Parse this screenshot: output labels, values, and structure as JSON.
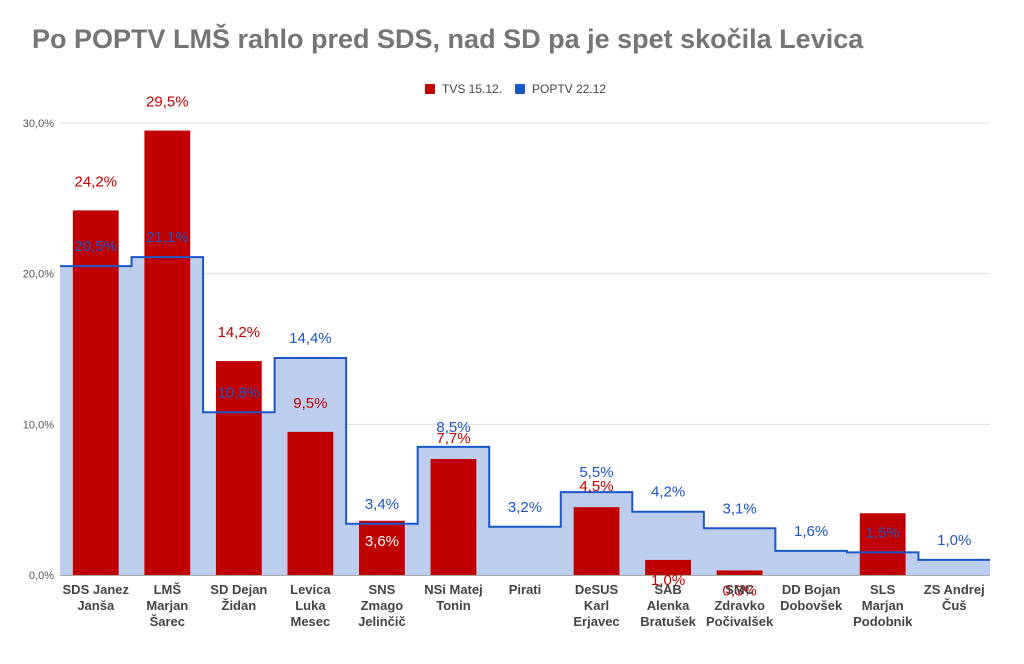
{
  "chart_data": {
    "type": "bar",
    "title": "Po POPTV LMŠ rahlo pred SDS, nad SD pa je spet skočila Levica",
    "categories": [
      [
        "SDS Janez",
        "Janša"
      ],
      [
        "LMŠ",
        "Marjan",
        "Šarec"
      ],
      [
        "SD Dejan",
        "Židan"
      ],
      [
        "Levica",
        "Luka",
        "Mesec"
      ],
      [
        "SNS",
        "Zmago",
        "Jelinčič"
      ],
      [
        "NSi Matej",
        "Tonin"
      ],
      [
        "Pirati"
      ],
      [
        "DeSUS",
        "Karl",
        "Erjavec"
      ],
      [
        "SAB",
        "Alenka",
        "Bratušek"
      ],
      [
        "SMC",
        "Zdravko",
        "Počivalšek"
      ],
      [
        "DD Bojan",
        "Dobovšek"
      ],
      [
        "SLS",
        "Marjan",
        "Podobnik"
      ],
      [
        "ZS Andrej",
        "Čuš"
      ]
    ],
    "series": [
      {
        "name": "TVS 15.12.",
        "kind": "bar",
        "color": "#c00000",
        "values": [
          24.2,
          29.5,
          14.2,
          9.5,
          3.6,
          7.7,
          null,
          4.5,
          1.0,
          0.3,
          null,
          4.1,
          null
        ],
        "labels": [
          "24,2%",
          "29,5%",
          "14,2%",
          "9,5%",
          "3,6%",
          "7,7%",
          "",
          "4,5%",
          "1,0%",
          "0,3%",
          "",
          "",
          ""
        ]
      },
      {
        "name": "POPTV 22.12",
        "kind": "stepped-area",
        "color": "#1a56c8",
        "fill": "#bccdee",
        "values": [
          20.5,
          21.1,
          10.8,
          14.4,
          3.4,
          8.5,
          3.2,
          5.5,
          4.2,
          3.1,
          1.6,
          1.5,
          1.0
        ],
        "labels": [
          "20,5%",
          "21,1%",
          "10,8%",
          "14,4%",
          "3,4%",
          "8,5%",
          "3,2%",
          "5,5%",
          "4,2%",
          "3,1%",
          "1,6%",
          "1,5%",
          "1,0%"
        ]
      }
    ],
    "ylim": [
      0,
      30
    ],
    "yticks": [
      "0,0%",
      "10,0%",
      "20,0%",
      "30,0%"
    ],
    "grid": true,
    "legend": "top-center"
  }
}
